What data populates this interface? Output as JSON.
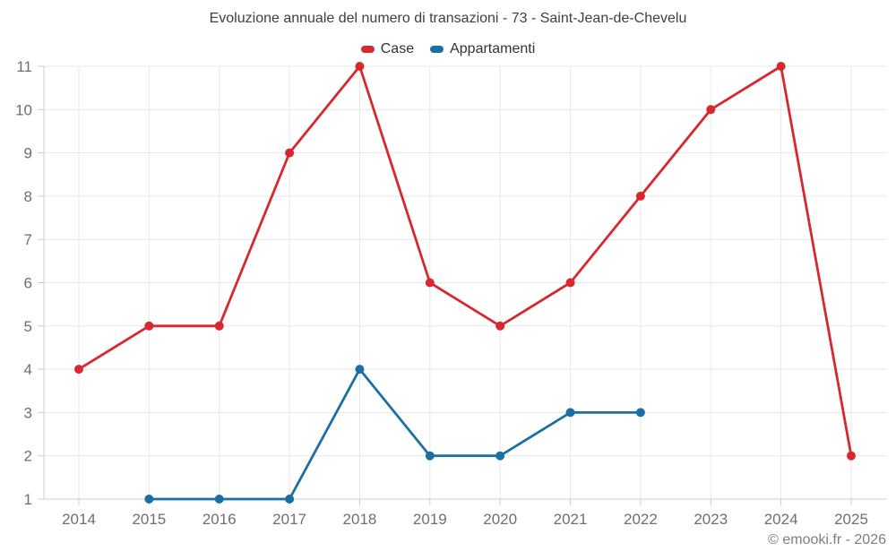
{
  "header": {
    "title": "Evoluzione annuale del numero di transazioni - 73 - Saint-Jean-de-Chevelu"
  },
  "legend": {
    "items": [
      {
        "label": "Case",
        "color": "#d7282f"
      },
      {
        "label": "Appartamenti",
        "color": "#1b6fa5"
      }
    ]
  },
  "watermark": "© emooki.fr - 2026",
  "chart_data": {
    "type": "line",
    "title": "Evoluzione annuale del numero di transazioni - 73 - Saint-Jean-de-Chevelu",
    "xlabel": "",
    "ylabel": "",
    "categories": [
      "2014",
      "2015",
      "2016",
      "2017",
      "2018",
      "2019",
      "2020",
      "2021",
      "2022",
      "2023",
      "2024",
      "2025"
    ],
    "series": [
      {
        "name": "Case",
        "color": "#d7282f",
        "values": [
          4,
          5,
          5,
          9,
          11,
          6,
          5,
          6,
          8,
          10,
          11,
          2
        ]
      },
      {
        "name": "Appartamenti",
        "color": "#1b6fa5",
        "values": [
          null,
          1,
          1,
          1,
          4,
          2,
          2,
          3,
          3,
          null,
          null,
          null
        ]
      }
    ],
    "ylim": [
      1,
      11
    ],
    "y_ticks": [
      1,
      2,
      3,
      4,
      5,
      6,
      7,
      8,
      9,
      10,
      11
    ],
    "grid": true,
    "legend_position": "top",
    "colors": {
      "grid_line": "#e7e7e7",
      "axis_line": "#cccccc",
      "tick_label": "#6f6f6f",
      "title_text": "#3f3f3f",
      "watermark_text": "#7e7e7e"
    }
  }
}
